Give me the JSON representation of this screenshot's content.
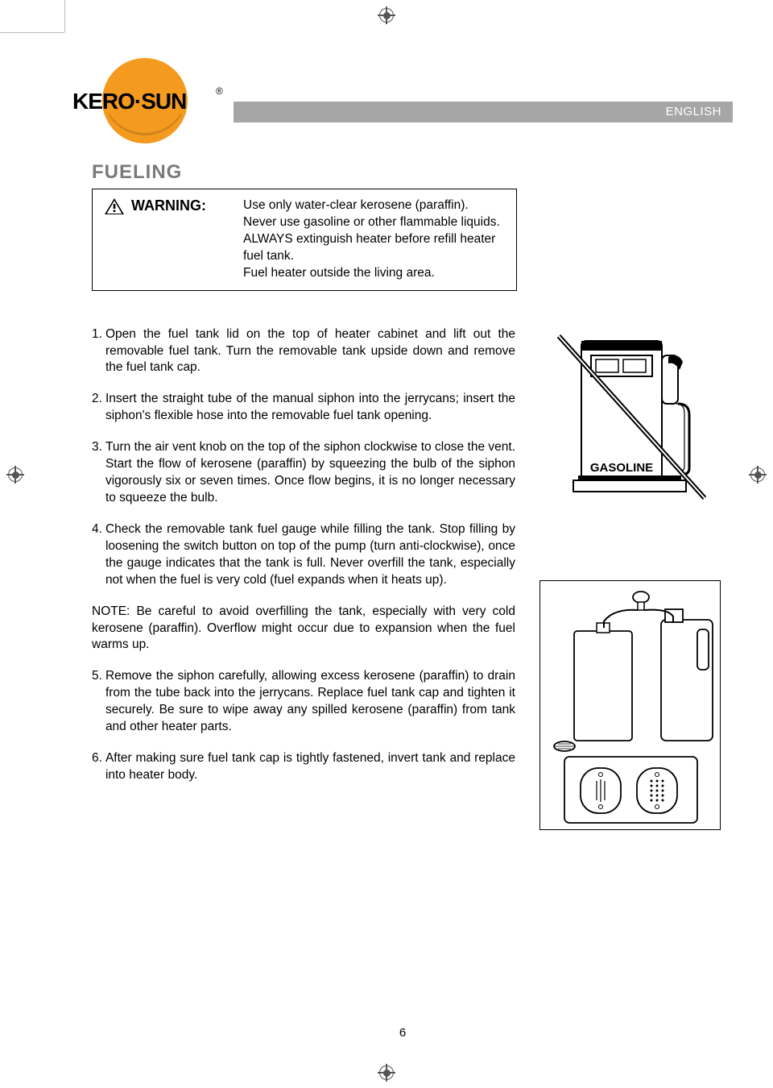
{
  "brand": {
    "name": "KERO·SUN",
    "reg_symbol": "®",
    "circle_color": "#f39a1f",
    "circle_shadow": "#c97f18"
  },
  "header": {
    "language": "ENGLISH",
    "bar_color": "#a6a6a6"
  },
  "section_title": "FUELING",
  "warning": {
    "label": "WARNING:",
    "lines": [
      "Use only water-clear kerosene (paraffin).",
      "Never use gasoline or other flammable liquids.",
      "ALWAYS extinguish heater before refill heater fuel tank.",
      "Fuel heater outside the living area."
    ]
  },
  "steps": [
    "Open the fuel tank lid on the top of heater cabinet and lift out  the removable fuel tank. Turn the removable tank upside down and remove the fuel tank cap.",
    "Insert the straight tube of the manual siphon into the jerrycans; insert the siphon's flexible hose into the removable fuel tank opening.",
    "Turn the air vent knob on the top of the siphon clockwise to close the vent. Start the flow of kerosene (paraffin) by squeezing the bulb of the siphon vigorously six or seven times. Once flow begins, it is no longer necessary to squeeze the bulb.",
    "Check the removable tank fuel gauge while filling the tank. Stop filling by loosening the switch button on top of the pump (turn anti-clockwise), once the gauge indicates that the tank is full. Never overfill the tank, especially not when the fuel is very cold (fuel expands when it heats up).",
    "Remove the siphon carefully, allowing excess kerosene (paraffin) to drain from the tube back into the jerrycans. Replace fuel tank cap and tighten it securely. Be sure to wipe away any spilled kerosene (paraffin) from tank and other heater parts.",
    "After making sure fuel tank cap is tightly fastened, invert tank and replace into heater body."
  ],
  "note": "NOTE: Be careful to avoid overfilling the tank, especially with very cold kerosene (paraffin). Overflow might occur due to expansion when the fuel warms up.",
  "note_position_after_step": 4,
  "fig1_label": "GASOLINE",
  "page_number": "6"
}
